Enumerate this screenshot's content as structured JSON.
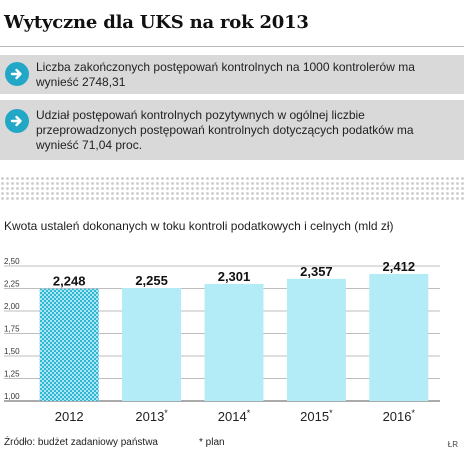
{
  "title": "Wytyczne dla UKS na rok 2013",
  "guidelines": [
    {
      "icon": "arrow-right-icon",
      "text": "Liczba zakończonych postępowań kontrolnych na 1000 kontrolerów ma wynieść 2748,31"
    },
    {
      "icon": "arrow-right-icon",
      "text": "Udział postępowań kontrolnych pozytywnych w ogólnej liczbie przeprowadzonych postępowań kontrolnych dotyczących podatków ma wynieść 71,04 proc."
    }
  ],
  "chart_data": {
    "type": "bar",
    "title": "Kwota ustaleń dokonanych w toku kontroli podatkowych i celnych (mld zł)",
    "categories": [
      "2012",
      "2013*",
      "2014*",
      "2015*",
      "2016*"
    ],
    "values": [
      2.248,
      2.255,
      2.301,
      2.357,
      2.412
    ],
    "value_labels": [
      "2,248",
      "2,255",
      "2,301",
      "2,357",
      "2,412"
    ],
    "y_ticks": [
      "2,50",
      "2,25",
      "2,00",
      "1,75",
      "1,50",
      "1,25",
      "1,00"
    ],
    "ylim": [
      1.0,
      2.5
    ],
    "grid": true,
    "colors": {
      "actual": "#4fc6dc",
      "plan": "#b3ecf6",
      "grid": "#bdbdbd"
    }
  },
  "footer": {
    "source": "Źródło: budżet zadaniowy państwa",
    "plan_note": "* plan",
    "credit": "ŁR"
  }
}
